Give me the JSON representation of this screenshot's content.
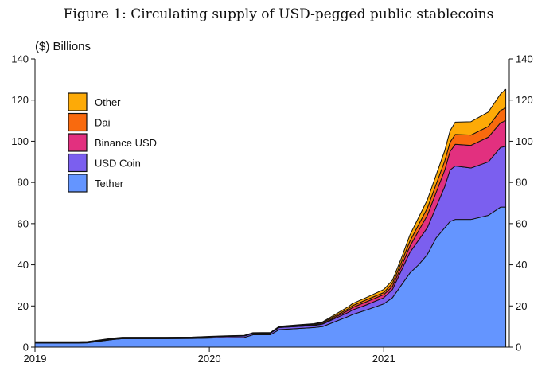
{
  "figure": {
    "title": "Figure 1: Circulating supply of USD-pegged public stablecoins"
  },
  "chart_data": {
    "type": "area",
    "stacked": true,
    "title": "Figure 1: Circulating supply of USD-pegged public stablecoins",
    "ylabel": "($) Billions",
    "xlabel": "",
    "ylim": [
      0,
      140
    ],
    "yticks": [
      0,
      20,
      40,
      60,
      80,
      100,
      120,
      140
    ],
    "xlim": [
      2019.0,
      2021.72
    ],
    "xticks": [
      {
        "value": 2019.0,
        "label": "2019"
      },
      {
        "value": 2020.0,
        "label": "2020"
      },
      {
        "value": 2021.0,
        "label": "2021"
      }
    ],
    "legend_position": "top-left",
    "x": [
      2019.0,
      2019.25,
      2019.3,
      2019.45,
      2019.5,
      2019.75,
      2019.9,
      2020.0,
      2020.1,
      2020.2,
      2020.25,
      2020.35,
      2020.4,
      2020.5,
      2020.6,
      2020.65,
      2020.8,
      2020.82,
      2020.9,
      2021.0,
      2021.05,
      2021.1,
      2021.15,
      2021.2,
      2021.25,
      2021.3,
      2021.35,
      2021.38,
      2021.41,
      2021.5,
      2021.6,
      2021.67,
      2021.7
    ],
    "series": [
      {
        "name": "Tether",
        "color": "#6495ff",
        "values": [
          2.0,
          2.0,
          2.1,
          3.7,
          4.1,
          4.1,
          4.2,
          4.4,
          4.6,
          4.7,
          6.0,
          6.0,
          8.5,
          9.0,
          9.5,
          10.0,
          15.0,
          15.8,
          18.0,
          21.0,
          24.0,
          30.0,
          36.0,
          40.0,
          45.0,
          53.0,
          58.0,
          61.0,
          62.0,
          62.0,
          64.0,
          68.0,
          68.0
        ]
      },
      {
        "name": "USD Coin",
        "color": "#7b5fef",
        "values": [
          0.3,
          0.3,
          0.3,
          0.4,
          0.4,
          0.4,
          0.4,
          0.5,
          0.6,
          0.7,
          0.7,
          0.8,
          1.0,
          1.0,
          1.0,
          1.2,
          2.0,
          2.2,
          2.5,
          3.0,
          4.0,
          7.0,
          10.0,
          12.0,
          13.0,
          15.0,
          20.0,
          25.0,
          26.0,
          25.0,
          26.0,
          29.0,
          29.5
        ]
      },
      {
        "name": "Binance USD",
        "color": "#e2307f",
        "values": [
          0.1,
          0.1,
          0.1,
          0.1,
          0.1,
          0.1,
          0.1,
          0.1,
          0.1,
          0.1,
          0.1,
          0.1,
          0.2,
          0.2,
          0.2,
          0.2,
          1.0,
          1.2,
          1.5,
          1.5,
          1.5,
          2.0,
          3.0,
          4.5,
          6.0,
          7.0,
          8.0,
          9.0,
          10.5,
          11.0,
          12.0,
          12.0,
          12.5
        ]
      },
      {
        "name": "Dai",
        "color": "#f96a0e",
        "values": [
          0.1,
          0.1,
          0.1,
          0.1,
          0.1,
          0.1,
          0.1,
          0.1,
          0.1,
          0.1,
          0.1,
          0.1,
          0.2,
          0.3,
          0.4,
          0.5,
          0.8,
          0.9,
          1.0,
          1.0,
          1.5,
          2.0,
          2.5,
          3.0,
          3.5,
          4.0,
          4.5,
          4.5,
          4.8,
          5.0,
          5.2,
          6.0,
          6.2
        ]
      },
      {
        "name": "Other",
        "color": "#fdaa07",
        "values": [
          0.1,
          0.1,
          0.1,
          0.1,
          0.1,
          0.1,
          0.1,
          0.1,
          0.1,
          0.1,
          0.1,
          0.1,
          0.2,
          0.3,
          0.3,
          0.4,
          1.0,
          1.0,
          1.1,
          1.5,
          1.5,
          2.0,
          3.0,
          3.5,
          4.0,
          4.5,
          5.0,
          5.5,
          6.0,
          6.5,
          7.0,
          8.0,
          9.0
        ]
      }
    ],
    "legend_order": [
      "Other",
      "Dai",
      "Binance USD",
      "USD Coin",
      "Tether"
    ]
  }
}
